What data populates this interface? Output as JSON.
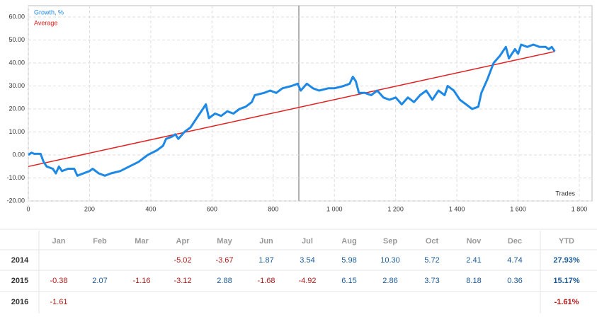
{
  "chart_data": {
    "type": "line",
    "x_label": "Trades",
    "xlim": [
      0,
      1800
    ],
    "xticks": [
      0,
      200,
      400,
      600,
      800,
      {
        "value": 1000,
        "label": "1 000"
      },
      {
        "value": 1200,
        "label": "1 200"
      },
      {
        "value": 1400,
        "label": "1 400"
      },
      {
        "value": 1600,
        "label": "1 600"
      },
      {
        "value": 1800,
        "label": "1 800"
      }
    ],
    "ylim": [
      -20,
      60
    ],
    "yticks": [
      {
        "value": -20,
        "label": "-20.00"
      },
      {
        "value": -10,
        "label": "-10.00"
      },
      {
        "value": 0,
        "label": "0.00"
      },
      {
        "value": 10,
        "label": "10.00"
      },
      {
        "value": 20,
        "label": "20.00"
      },
      {
        "value": 30,
        "label": "30.00"
      },
      {
        "value": 40,
        "label": "40.00"
      },
      {
        "value": 50,
        "label": "50.00"
      },
      {
        "value": 60,
        "label": "60.00"
      }
    ],
    "grid": true,
    "legend": "upper left",
    "series": [
      {
        "name": "Growth, %",
        "color": "#1e88e5",
        "width": 3,
        "x": [
          0,
          10,
          20,
          40,
          50,
          60,
          80,
          90,
          100,
          110,
          130,
          150,
          160,
          180,
          200,
          210,
          230,
          250,
          270,
          300,
          330,
          360,
          390,
          420,
          440,
          450,
          470,
          480,
          490,
          510,
          530,
          550,
          570,
          580,
          590,
          610,
          630,
          650,
          670,
          690,
          710,
          730,
          740,
          770,
          790,
          810,
          830,
          860,
          880,
          890,
          910,
          930,
          950,
          980,
          1000,
          1030,
          1050,
          1060,
          1070,
          1080,
          1100,
          1120,
          1140,
          1160,
          1180,
          1200,
          1220,
          1240,
          1260,
          1280,
          1300,
          1320,
          1340,
          1360,
          1370,
          1390,
          1410,
          1430,
          1450,
          1470,
          1480,
          1500,
          1520,
          1540,
          1560,
          1570,
          1590,
          1600,
          1610,
          1630,
          1650,
          1670,
          1690,
          1700,
          1710,
          1720
        ],
        "values": [
          0,
          1,
          0.5,
          0.5,
          -3,
          -5,
          -6,
          -8,
          -5,
          -7,
          -6,
          -6,
          -9,
          -8,
          -7,
          -6,
          -8,
          -9,
          -8,
          -7,
          -5,
          -3,
          0,
          2,
          4,
          7,
          8,
          9,
          7,
          10,
          12,
          16,
          20,
          22,
          16,
          18,
          17,
          19,
          18,
          20,
          21,
          23,
          26,
          27,
          28,
          27,
          29,
          30,
          31,
          28,
          31,
          29,
          28,
          29,
          29,
          30,
          31,
          34,
          32,
          27,
          27,
          26,
          28,
          25,
          24,
          25,
          22,
          25,
          23,
          26,
          28,
          24,
          28,
          26,
          30,
          28,
          24,
          22,
          20,
          21,
          27,
          33,
          40,
          43,
          47,
          42,
          46,
          44,
          48,
          47,
          48,
          47,
          47,
          46,
          47,
          45
        ]
      },
      {
        "name": "Average",
        "color": "#e02020",
        "width": 1.5,
        "x": [
          0,
          1720
        ],
        "values": [
          -5,
          45
        ]
      }
    ]
  },
  "table": {
    "columns": [
      "Jan",
      "Feb",
      "Mar",
      "Apr",
      "May",
      "Jun",
      "Jul",
      "Aug",
      "Sep",
      "Oct",
      "Nov",
      "Dec",
      "YTD"
    ],
    "rows": [
      {
        "year": "2014",
        "cells": [
          null,
          null,
          null,
          "-5.02",
          "-3.67",
          "1.87",
          "3.54",
          "5.98",
          "10.30",
          "5.72",
          "2.41",
          "4.74",
          "27.93%"
        ]
      },
      {
        "year": "2015",
        "cells": [
          "-0.38",
          "2.07",
          "-1.16",
          "-3.12",
          "2.88",
          "-1.68",
          "-4.92",
          "6.15",
          "2.86",
          "3.73",
          "8.18",
          "0.36",
          "15.17%"
        ]
      },
      {
        "year": "2016",
        "cells": [
          "-1.61",
          null,
          null,
          null,
          null,
          null,
          null,
          null,
          null,
          null,
          null,
          null,
          "-1.61%"
        ]
      }
    ]
  }
}
